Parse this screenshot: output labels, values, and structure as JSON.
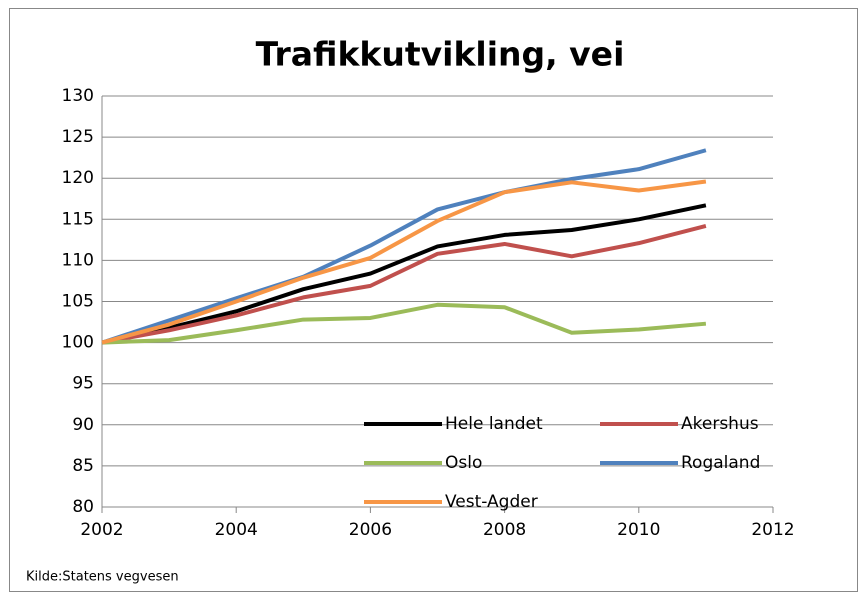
{
  "chart_data": {
    "type": "line",
    "title": "Trafikkutvikling, vei",
    "x": [
      2002,
      2003,
      2004,
      2005,
      2006,
      2007,
      2008,
      2009,
      2010,
      2011
    ],
    "series": [
      {
        "name": "Hele landet",
        "color": "#000000",
        "values": [
          100,
          101.8,
          103.8,
          106.5,
          108.4,
          111.7,
          113.1,
          113.7,
          115,
          116.7
        ]
      },
      {
        "name": "Akershus",
        "color": "#c0504d",
        "values": [
          100,
          101.5,
          103.3,
          105.5,
          106.9,
          110.8,
          112,
          110.5,
          112.1,
          114.2
        ]
      },
      {
        "name": "Oslo",
        "color": "#9bbb59",
        "values": [
          100,
          100.3,
          101.5,
          102.8,
          103,
          104.6,
          104.3,
          101.2,
          101.6,
          102.3
        ]
      },
      {
        "name": "Rogaland",
        "color": "#4f81bd",
        "values": [
          100,
          102.7,
          105.4,
          108,
          111.8,
          116.2,
          118.3,
          119.9,
          121.1,
          123.4
        ]
      },
      {
        "name": "Vest-Agder",
        "color": "#f79646",
        "values": [
          100,
          102.2,
          105,
          107.9,
          110.3,
          114.8,
          118.3,
          119.5,
          118.5,
          119.6
        ]
      }
    ],
    "xlim": [
      2002,
      2012
    ],
    "xticks": [
      2002,
      2004,
      2006,
      2008,
      2010,
      2012
    ],
    "ylim": [
      80,
      130
    ],
    "yticks": [
      80,
      85,
      90,
      95,
      100,
      105,
      110,
      115,
      120,
      125,
      130
    ],
    "grid": true,
    "legend": "bottom",
    "source": "Kilde:Statens vegvesen"
  }
}
